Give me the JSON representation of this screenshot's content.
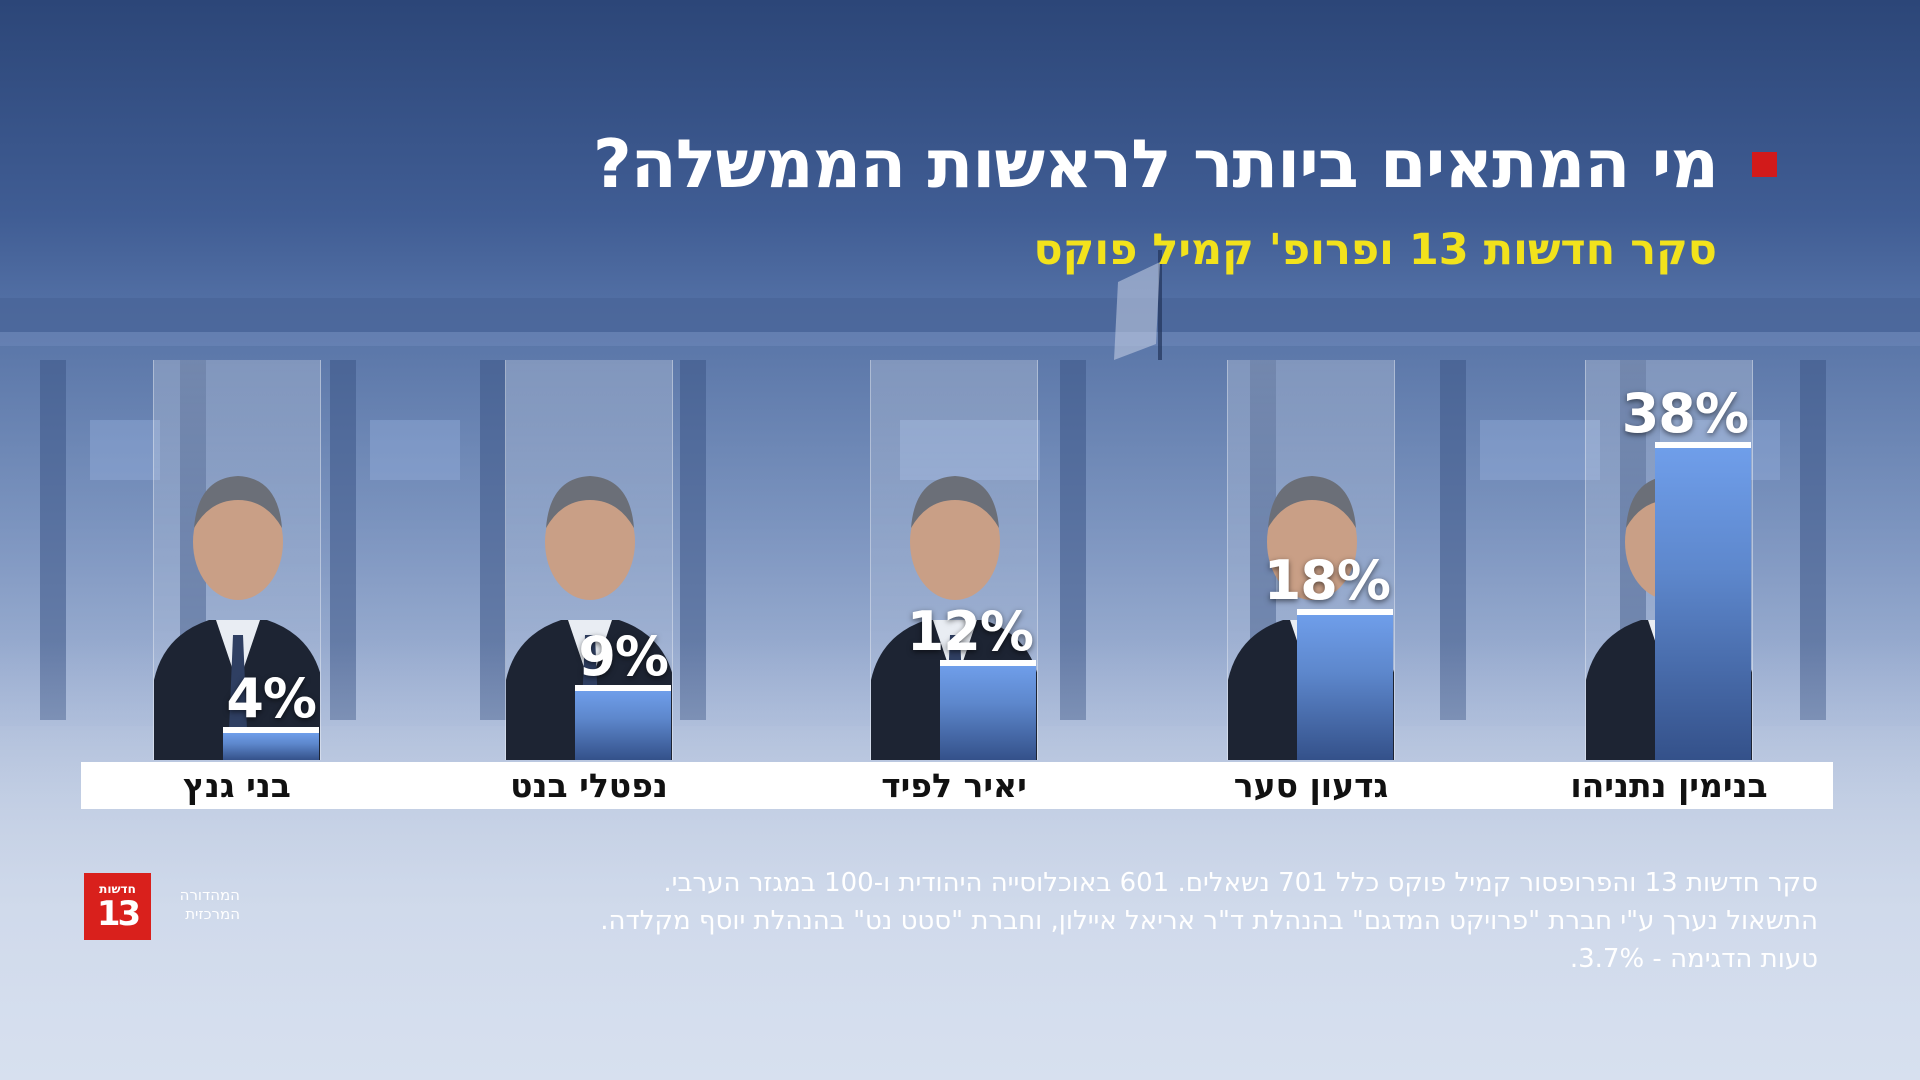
{
  "title": "מי המתאים ביותר לראשות הממשלה?",
  "subtitle": "סקר חדשות 13 ופרופ' קמיל פוקס",
  "colors": {
    "bar": "#6f9eea",
    "title_bullet": "#d21a1a",
    "subtitle": "#f2e21c",
    "logo": "#d9201c"
  },
  "chart_data": {
    "type": "bar",
    "categories": [
      "בנימין נתניהו",
      "גדעון סער",
      "יאיר לפיד",
      "נפטלי בנט",
      "בני גנץ"
    ],
    "values": [
      38,
      18,
      12,
      9,
      4
    ],
    "value_labels": [
      "38%",
      "18%",
      "12%",
      "9%",
      "4%"
    ],
    "unit": "%",
    "title": "מי המתאים ביותר לראשות הממשלה?",
    "subtitle": "סקר חדשות 13 ופרופ' קמיל פוקס",
    "ylim": [
      0,
      38
    ],
    "grid": false,
    "legend": "none",
    "orientation": "vertical",
    "order": "right-to-left"
  },
  "footnote": {
    "line1": "סקר חדשות 13 והפרופסור קמיל פוקס כלל 701 נשאלים. 601 באוכלוסייה היהודית ו-100 במגזר הערבי.",
    "line2": "התשאול נערך ע\"י חברת \"פרויקט המדגם\" בהנהלת ד\"ר אריאל איילון, וחברת \"סטט נט\" בהנהלת יוסף מקלדה.",
    "line3": "טעות הדגימה - 3.7%."
  },
  "logo": {
    "top": "חדשות",
    "number": "13",
    "caption_line1": "המהדורה",
    "caption_line2": "המרכזית"
  }
}
